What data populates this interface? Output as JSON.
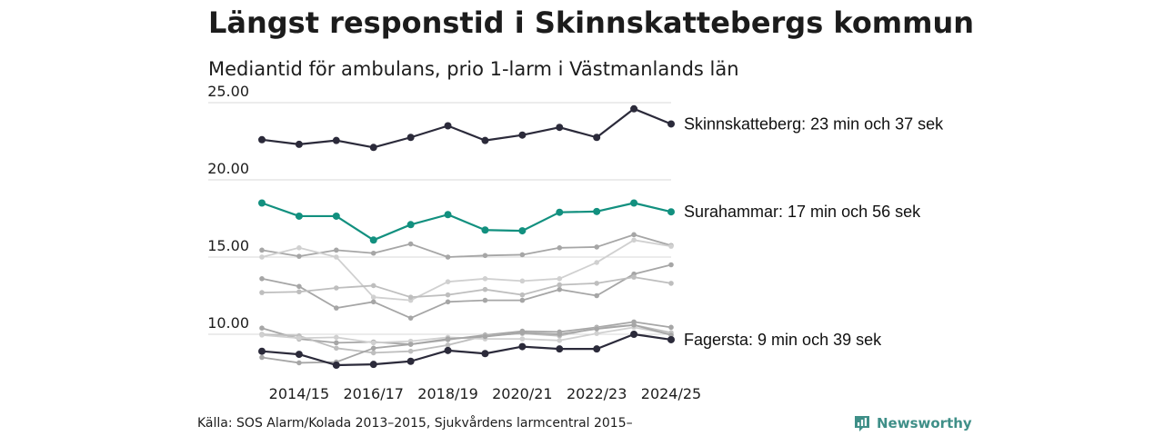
{
  "header": {
    "title": "Längst responstid i Skinnskattebergs kommun",
    "subtitle": "Mediantid för ambulans, prio 1-larm i Västmanlands län"
  },
  "footer": {
    "source": "Källa: SOS Alarm/Kolada 2013–2015, Sjukvårdens larmcentral 2015–",
    "brand": "Newsworthy",
    "brand_icon": "bar-chart-logo-icon"
  },
  "colors": {
    "highlight_dark": "#2b2a3a",
    "highlight_teal": "#12907f",
    "gray_lines": [
      "#a6a6a6",
      "#bebebe",
      "#d0d0d0"
    ],
    "gridline": "#d9d9d9",
    "brand": "#3f8f88"
  },
  "chart_data": {
    "type": "line",
    "title": "Längst responstid i Skinnskattebergs kommun",
    "subtitle": "Mediantid för ambulans, prio 1-larm i Västmanlands län",
    "xlabel": "",
    "ylabel": "",
    "x": [
      "2013/14",
      "2014/15",
      "2015/16",
      "2016/17",
      "2017/18",
      "2018/19",
      "2019/20",
      "2020/21",
      "2021/22",
      "2022/23",
      "2023/24",
      "2024/25"
    ],
    "x_tick_labels": [
      "2014/15",
      "2016/17",
      "2018/19",
      "2020/21",
      "2022/23",
      "2024/25"
    ],
    "y_ticks": [
      "10.00",
      "15.00",
      "20.00",
      "25.00"
    ],
    "ylim": [
      8.0,
      25.6
    ],
    "grid": true,
    "highlighted": [
      {
        "name": "Skinnskatteberg",
        "label": "Skinnskatteberg: 23 min och 37 sek",
        "color": "#2b2a3a",
        "values": [
          22.6,
          22.3,
          22.55,
          22.1,
          22.75,
          23.5,
          22.55,
          22.9,
          23.4,
          22.75,
          24.6,
          23.62
        ]
      },
      {
        "name": "Surahammar",
        "label": "Surahammar: 17 min och 56 sek",
        "color": "#12907f",
        "values": [
          18.5,
          17.65,
          17.65,
          16.1,
          17.1,
          17.75,
          16.75,
          16.7,
          17.9,
          17.95,
          18.5,
          17.93
        ]
      },
      {
        "name": "Fagersta",
        "label": "Fagersta: 9 min och 39 sek",
        "color": "#2b2a3a",
        "values": [
          8.9,
          8.7,
          8.0,
          8.05,
          8.25,
          8.95,
          8.75,
          9.2,
          9.05,
          9.05,
          10.0,
          9.65
        ]
      }
    ],
    "other_series": [
      {
        "color": "#a6a6a6",
        "values": [
          15.45,
          15.05,
          15.45,
          15.25,
          15.85,
          15.0,
          15.1,
          15.15,
          15.6,
          15.65,
          16.45,
          15.75
        ]
      },
      {
        "color": "#d0d0d0",
        "values": [
          15.0,
          15.6,
          15.0,
          12.4,
          12.2,
          13.4,
          13.6,
          13.45,
          13.6,
          14.65,
          16.1,
          15.7
        ]
      },
      {
        "color": "#a6a6a6",
        "values": [
          13.6,
          13.1,
          11.7,
          12.1,
          11.05,
          12.1,
          12.2,
          12.2,
          12.9,
          12.5,
          13.9,
          14.5
        ]
      },
      {
        "color": "#bebebe",
        "values": [
          12.7,
          12.75,
          13.0,
          13.15,
          12.4,
          12.55,
          12.9,
          12.55,
          13.2,
          13.3,
          13.7,
          13.3
        ]
      },
      {
        "color": "#a6a6a6",
        "values": [
          10.4,
          9.7,
          9.45,
          9.5,
          9.35,
          9.65,
          9.95,
          10.2,
          10.15,
          10.45,
          10.8,
          10.45
        ]
      },
      {
        "color": "#bebebe",
        "values": [
          10.0,
          9.9,
          9.1,
          8.8,
          8.9,
          9.3,
          9.9,
          10.05,
          9.9,
          10.4,
          10.6,
          10.1
        ]
      },
      {
        "color": "#d0d0d0",
        "values": [
          9.95,
          9.75,
          9.8,
          9.45,
          9.55,
          9.8,
          9.7,
          9.7,
          9.6,
          10.05,
          10.45,
          10.0
        ]
      },
      {
        "color": "#a6a6a6",
        "values": [
          8.5,
          8.15,
          8.2,
          9.1,
          9.35,
          9.7,
          9.85,
          10.1,
          10.0,
          10.35,
          10.6,
          9.95
        ]
      }
    ]
  }
}
